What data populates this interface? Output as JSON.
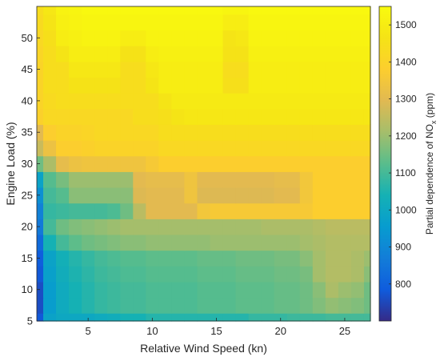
{
  "chart_data": {
    "type": "heatmap",
    "title": "",
    "xlabel": "Relative Wind Speed (kn)",
    "ylabel": "Engine Load (%)",
    "colorbar_label_main": "Partial dependence of NO",
    "colorbar_label_sub": "x",
    "colorbar_label_tail": " (ppm)",
    "xlim": [
      1,
      27
    ],
    "ylim": [
      5,
      55
    ],
    "xticks": [
      5,
      10,
      15,
      20,
      25
    ],
    "yticks": [
      5,
      10,
      15,
      20,
      25,
      30,
      35,
      40,
      45,
      50
    ],
    "clim": [
      700,
      1550
    ],
    "cticks": [
      800,
      900,
      1000,
      1100,
      1200,
      1300,
      1400,
      1500
    ],
    "colormap": "parula",
    "x": [
      1,
      2,
      3,
      4,
      5,
      6,
      7,
      8,
      9,
      10,
      11,
      12,
      13,
      14,
      15,
      16,
      17,
      18,
      19,
      20,
      21,
      22,
      23,
      24,
      25,
      26,
      27
    ],
    "y": [
      5,
      7.5,
      10,
      12.5,
      15,
      17.5,
      20,
      22.5,
      25,
      27.5,
      30,
      32.5,
      35,
      37.5,
      40,
      42.5,
      45,
      47.5,
      50,
      52.5,
      55
    ],
    "z": [
      [
        780,
        980,
        1000,
        1000,
        1000,
        1010,
        1020,
        1040,
        1040,
        1060,
        1060,
        1060,
        1060,
        1060,
        1060,
        1060,
        1060,
        1080,
        1080,
        1080,
        1090,
        1090,
        1090,
        1100,
        1100,
        1100,
        1100
      ],
      [
        760,
        960,
        1010,
        1040,
        1060,
        1080,
        1090,
        1100,
        1100,
        1110,
        1110,
        1110,
        1110,
        1120,
        1120,
        1120,
        1130,
        1130,
        1130,
        1140,
        1140,
        1150,
        1170,
        1190,
        1180,
        1170,
        1150
      ],
      [
        760,
        960,
        1010,
        1040,
        1060,
        1080,
        1090,
        1100,
        1100,
        1110,
        1110,
        1110,
        1110,
        1120,
        1120,
        1120,
        1130,
        1130,
        1130,
        1140,
        1140,
        1150,
        1180,
        1220,
        1200,
        1190,
        1150
      ],
      [
        780,
        970,
        1020,
        1050,
        1070,
        1090,
        1100,
        1110,
        1110,
        1120,
        1120,
        1120,
        1120,
        1130,
        1130,
        1130,
        1140,
        1140,
        1140,
        1150,
        1150,
        1160,
        1210,
        1230,
        1230,
        1220,
        1180
      ],
      [
        790,
        980,
        1030,
        1060,
        1080,
        1100,
        1110,
        1120,
        1120,
        1130,
        1130,
        1130,
        1130,
        1140,
        1140,
        1140,
        1150,
        1150,
        1150,
        1160,
        1160,
        1180,
        1210,
        1230,
        1230,
        1220,
        1200
      ],
      [
        820,
        1040,
        1100,
        1130,
        1150,
        1160,
        1170,
        1180,
        1180,
        1190,
        1190,
        1190,
        1190,
        1190,
        1200,
        1200,
        1200,
        1200,
        1200,
        1200,
        1200,
        1210,
        1220,
        1230,
        1230,
        1230,
        1230
      ],
      [
        860,
        1100,
        1150,
        1170,
        1180,
        1190,
        1200,
        1210,
        1210,
        1210,
        1210,
        1210,
        1210,
        1210,
        1210,
        1210,
        1210,
        1210,
        1220,
        1220,
        1220,
        1220,
        1230,
        1240,
        1240,
        1240,
        1240
      ],
      [
        880,
        1080,
        1090,
        1100,
        1100,
        1100,
        1110,
        1150,
        1240,
        1300,
        1300,
        1300,
        1300,
        1350,
        1360,
        1360,
        1360,
        1360,
        1360,
        1360,
        1360,
        1360,
        1380,
        1380,
        1380,
        1380,
        1380
      ],
      [
        920,
        1100,
        1120,
        1180,
        1180,
        1180,
        1180,
        1180,
        1290,
        1300,
        1300,
        1300,
        1340,
        1290,
        1290,
        1290,
        1290,
        1290,
        1290,
        1300,
        1300,
        1350,
        1380,
        1380,
        1380,
        1380,
        1380
      ],
      [
        980,
        1120,
        1160,
        1200,
        1200,
        1200,
        1200,
        1200,
        1300,
        1310,
        1310,
        1310,
        1340,
        1300,
        1300,
        1300,
        1300,
        1300,
        1300,
        1310,
        1310,
        1350,
        1380,
        1380,
        1380,
        1380,
        1380
      ],
      [
        1150,
        1220,
        1310,
        1330,
        1340,
        1340,
        1340,
        1340,
        1340,
        1360,
        1380,
        1380,
        1380,
        1380,
        1380,
        1380,
        1380,
        1380,
        1380,
        1380,
        1380,
        1380,
        1380,
        1380,
        1380,
        1380,
        1380
      ],
      [
        1260,
        1330,
        1380,
        1380,
        1390,
        1400,
        1400,
        1400,
        1400,
        1400,
        1420,
        1420,
        1420,
        1420,
        1420,
        1420,
        1420,
        1420,
        1420,
        1420,
        1420,
        1420,
        1420,
        1420,
        1420,
        1420,
        1420
      ],
      [
        1300,
        1380,
        1400,
        1400,
        1410,
        1420,
        1420,
        1420,
        1420,
        1420,
        1440,
        1440,
        1440,
        1440,
        1440,
        1440,
        1440,
        1440,
        1440,
        1440,
        1440,
        1440,
        1440,
        1440,
        1440,
        1440,
        1440
      ],
      [
        1390,
        1420,
        1420,
        1420,
        1420,
        1420,
        1420,
        1420,
        1440,
        1440,
        1450,
        1470,
        1480,
        1480,
        1480,
        1480,
        1480,
        1480,
        1480,
        1480,
        1480,
        1480,
        1480,
        1480,
        1480,
        1480,
        1480
      ],
      [
        1400,
        1430,
        1440,
        1440,
        1440,
        1440,
        1440,
        1440,
        1440,
        1440,
        1470,
        1490,
        1490,
        1490,
        1490,
        1490,
        1490,
        1490,
        1490,
        1490,
        1490,
        1490,
        1490,
        1490,
        1490,
        1490,
        1490
      ],
      [
        1400,
        1440,
        1440,
        1460,
        1460,
        1460,
        1460,
        1440,
        1440,
        1470,
        1500,
        1500,
        1500,
        1500,
        1500,
        1450,
        1450,
        1500,
        1500,
        1500,
        1500,
        1500,
        1500,
        1500,
        1500,
        1500,
        1500
      ],
      [
        1400,
        1440,
        1440,
        1480,
        1480,
        1480,
        1480,
        1440,
        1440,
        1480,
        1500,
        1500,
        1500,
        1500,
        1500,
        1440,
        1440,
        1500,
        1500,
        1500,
        1500,
        1500,
        1500,
        1500,
        1500,
        1500,
        1500
      ],
      [
        1410,
        1440,
        1470,
        1500,
        1500,
        1500,
        1500,
        1460,
        1460,
        1500,
        1510,
        1510,
        1510,
        1510,
        1510,
        1460,
        1460,
        1510,
        1510,
        1510,
        1510,
        1510,
        1510,
        1510,
        1510,
        1510,
        1510
      ],
      [
        1420,
        1450,
        1500,
        1510,
        1520,
        1520,
        1520,
        1500,
        1500,
        1520,
        1520,
        1520,
        1520,
        1520,
        1520,
        1470,
        1480,
        1520,
        1520,
        1520,
        1520,
        1520,
        1520,
        1520,
        1520,
        1520,
        1520
      ],
      [
        1430,
        1470,
        1510,
        1520,
        1530,
        1530,
        1530,
        1530,
        1530,
        1530,
        1530,
        1530,
        1530,
        1530,
        1530,
        1500,
        1500,
        1530,
        1530,
        1530,
        1530,
        1530,
        1530,
        1530,
        1530,
        1530,
        1530
      ],
      [
        1440,
        1480,
        1520,
        1530,
        1540,
        1540,
        1540,
        1540,
        1540,
        1540,
        1540,
        1540,
        1540,
        1540,
        1540,
        1530,
        1530,
        1540,
        1540,
        1540,
        1540,
        1540,
        1540,
        1540,
        1540,
        1540,
        1540
      ]
    ]
  }
}
